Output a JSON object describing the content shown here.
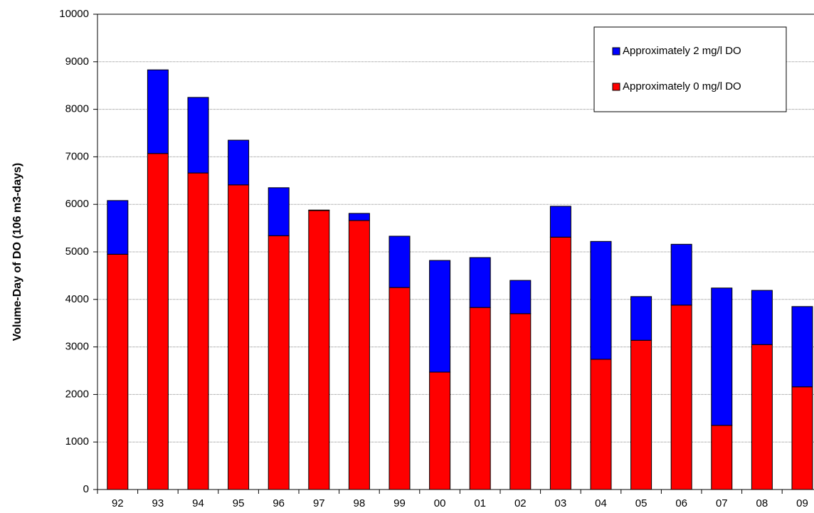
{
  "chart_data": {
    "type": "stacked_bar",
    "y_label": "Volume-Day of DO (106 m3-days)",
    "categories": [
      "92",
      "93",
      "94",
      "95",
      "96",
      "97",
      "98",
      "99",
      "00",
      "01",
      "02",
      "03",
      "04",
      "05",
      "06",
      "07",
      "08",
      "09"
    ],
    "series": [
      {
        "name": "Approximately 0 mg/l DO",
        "color": "#ff0000",
        "values": [
          4950,
          7070,
          6660,
          6410,
          5340,
          5870,
          5660,
          4250,
          2470,
          3830,
          3700,
          5310,
          2740,
          3140,
          3880,
          1350,
          3050,
          2160
        ]
      },
      {
        "name": "Approximately 2 mg/l DO",
        "color": "#0000ff",
        "values": [
          1130,
          1760,
          1590,
          940,
          1010,
          10,
          150,
          1080,
          2350,
          1050,
          700,
          650,
          2480,
          920,
          1280,
          2890,
          1140,
          1690
        ]
      }
    ],
    "ylim": [
      0,
      10000
    ],
    "yticks": [
      0,
      1000,
      2000,
      3000,
      4000,
      5000,
      6000,
      7000,
      8000,
      9000,
      10000
    ],
    "grid": true,
    "legend": "top-right"
  }
}
